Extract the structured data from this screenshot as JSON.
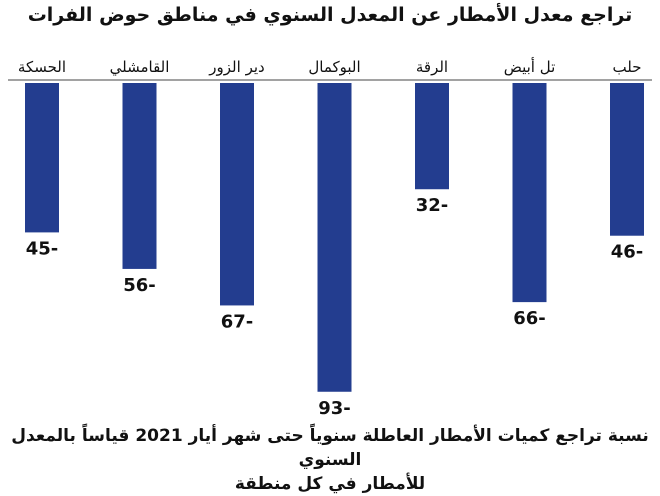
{
  "chart_data": {
    "type": "bar",
    "title": "تراجع معدل الأمطار عن المعدل السنوي في مناطق حوض الفرات",
    "categories": [
      "حلب",
      "تل أبيض",
      "الرقة",
      "البوكمال",
      "دير الزور",
      "القامشلي",
      "الحسكة"
    ],
    "values": [
      -46,
      -66,
      -32,
      -93,
      -67,
      -56,
      -45
    ],
    "value_labels": [
      "46-",
      "66-",
      "32-",
      "93-",
      "67-",
      "56-",
      "45-"
    ],
    "ylim": [
      -100,
      0
    ],
    "grid": false,
    "bar_color": "#233d8f",
    "caption_line1": "نسبة تراجع كميات الأمطار العاطلة سنوياً حتى شهر أيار 2021 قياساً بالمعدل السنوي",
    "caption_line2": "للأمطار في كل منطقة"
  }
}
